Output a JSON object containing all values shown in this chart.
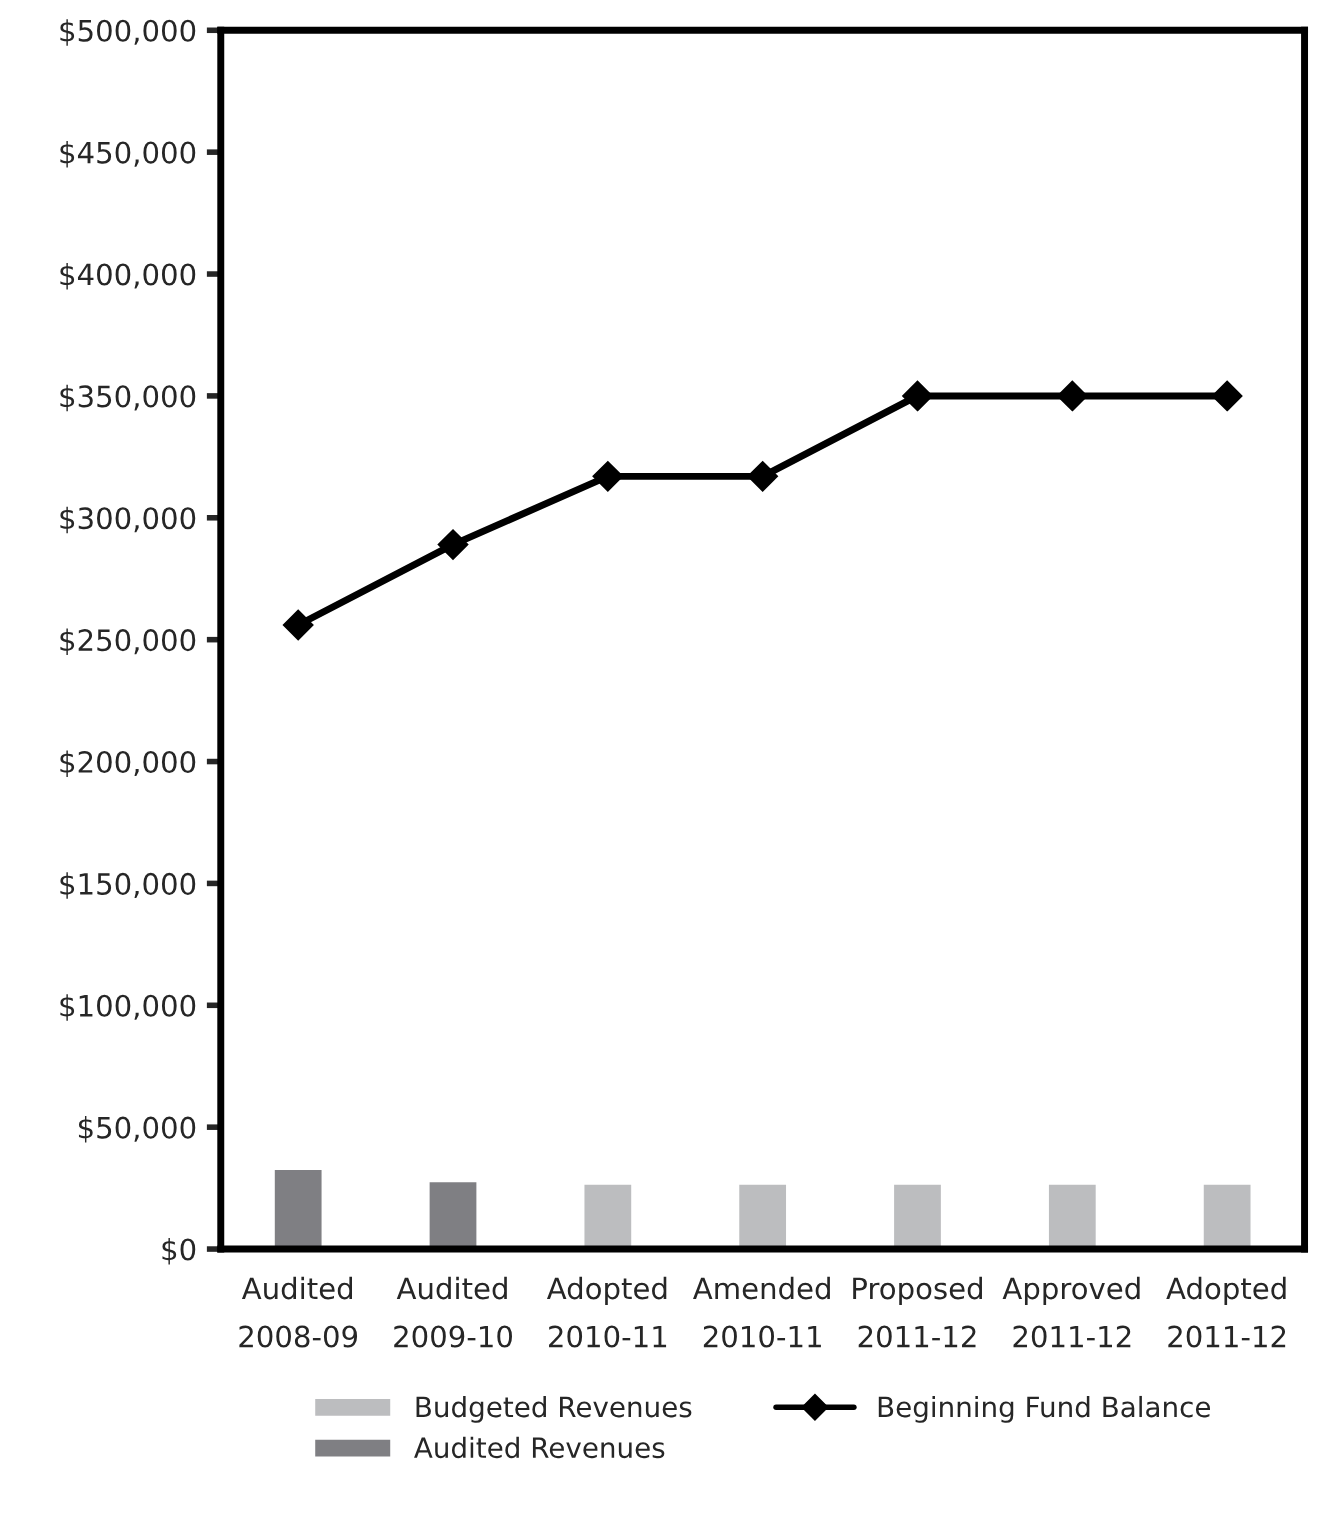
{
  "chart_data": {
    "type": "bar",
    "categories": [
      "Audited\n2008-09",
      "Audited\n2009-10",
      "Adopted\n2010-11",
      "Amended\n2010-11",
      "Proposed\n2011-12",
      "Approved\n2011-12",
      "Adopted\n2011-12"
    ],
    "series": [
      {
        "name": "Budgeted Revenues",
        "color": "#bcbdbf",
        "values": [
          null,
          null,
          27000,
          27000,
          27000,
          27000,
          27000
        ]
      },
      {
        "name": "Audited Revenues",
        "color": "#7f7f83",
        "values": [
          33000,
          28000,
          null,
          null,
          null,
          null,
          null
        ]
      },
      {
        "name": "Beginning Fund Balance",
        "type": "line",
        "color": "#000000",
        "marker": "diamond",
        "values": [
          256000,
          289000,
          317000,
          317000,
          350000,
          350000,
          350000
        ]
      }
    ],
    "ylim": [
      0,
      500000
    ],
    "yticks": [
      {
        "value": 0,
        "label": "$0"
      },
      {
        "value": 50000,
        "label": "$50,000"
      },
      {
        "value": 100000,
        "label": "$100,000"
      },
      {
        "value": 150000,
        "label": "$150,000"
      },
      {
        "value": 200000,
        "label": "$200,000"
      },
      {
        "value": 250000,
        "label": "$250,000"
      },
      {
        "value": 300000,
        "label": "$300,000"
      },
      {
        "value": 350000,
        "label": "$350,000"
      },
      {
        "value": 400000,
        "label": "$400,000"
      },
      {
        "value": 450000,
        "label": "$450,000"
      },
      {
        "value": 500000,
        "label": "$500,000"
      }
    ],
    "grid": false,
    "legend": "bottom"
  }
}
